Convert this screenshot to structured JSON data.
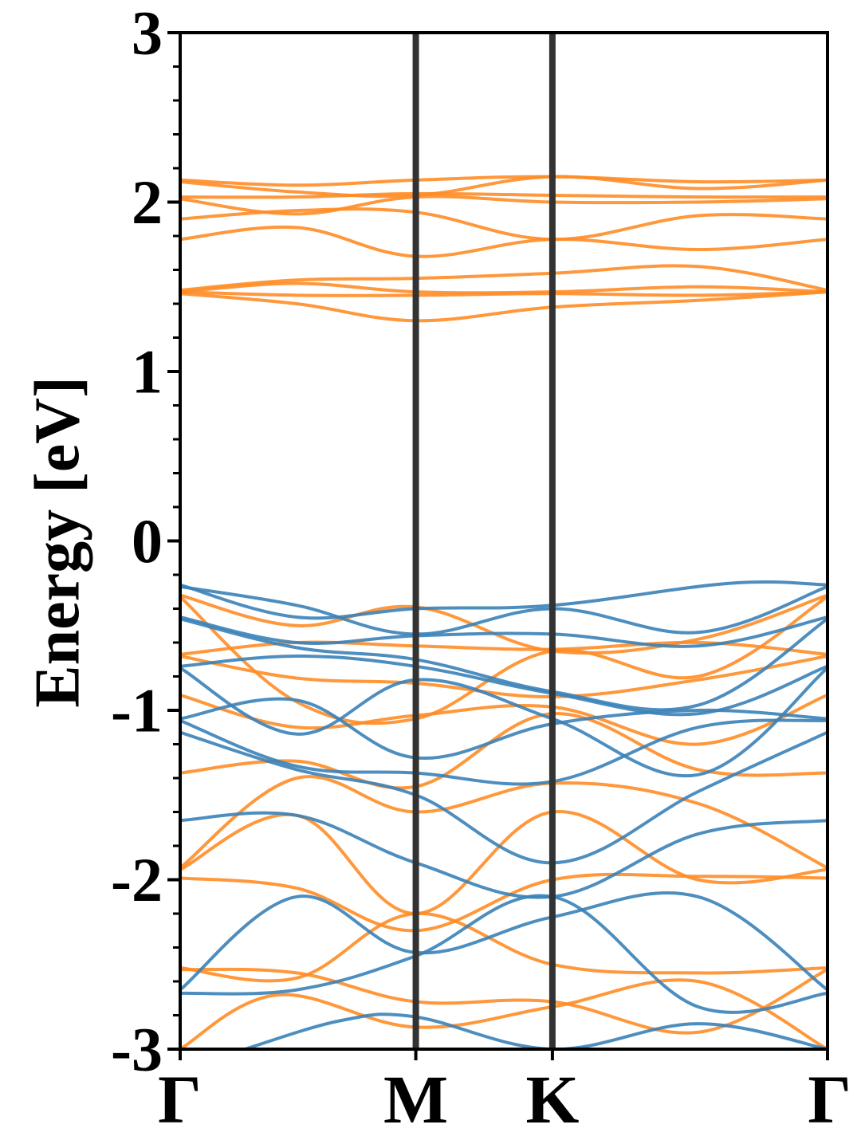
{
  "chart_data": {
    "type": "line",
    "title": "",
    "xlabel": "",
    "ylabel": "Energy [eV]",
    "ylim": [
      -3,
      3
    ],
    "yticks": [
      -3,
      -2,
      -1,
      0,
      1,
      2,
      3
    ],
    "ytick_labels": [
      "-3",
      "-2",
      "-1",
      "0",
      "1",
      "2",
      "3"
    ],
    "xlim": [
      0,
      1
    ],
    "kpoints": [
      {
        "label": "Γ",
        "x": 0.0
      },
      {
        "label": "M",
        "x": 0.364
      },
      {
        "label": "K",
        "x": 0.575
      },
      {
        "label": "Γ",
        "x": 1.0
      }
    ],
    "grid": false,
    "colors": {
      "series_a": "#3b82b8",
      "series_b": "#ff8c26",
      "kline": "#333333"
    },
    "series": [
      {
        "color": "series_b",
        "bands": [
          [
            [
              0,
              2.13
            ],
            [
              0.18,
              2.1
            ],
            [
              0.364,
              2.13
            ],
            [
              0.575,
              2.15
            ],
            [
              0.8,
              2.12
            ],
            [
              1,
              2.13
            ]
          ],
          [
            [
              0,
              2.12
            ],
            [
              0.18,
              2.06
            ],
            [
              0.364,
              2.04
            ],
            [
              0.575,
              2.15
            ],
            [
              0.8,
              2.08
            ],
            [
              1,
              2.13
            ]
          ],
          [
            [
              0,
              2.03
            ],
            [
              0.18,
              2.03
            ],
            [
              0.364,
              2.05
            ],
            [
              0.575,
              2.04
            ],
            [
              0.8,
              2.03
            ],
            [
              1,
              2.03
            ]
          ],
          [
            [
              0,
              2.02
            ],
            [
              0.18,
              1.93
            ],
            [
              0.364,
              2.03
            ],
            [
              0.575,
              2.0
            ],
            [
              0.8,
              2.0
            ],
            [
              1,
              2.02
            ]
          ],
          [
            [
              0,
              1.9
            ],
            [
              0.18,
              1.95
            ],
            [
              0.364,
              1.94
            ],
            [
              0.575,
              1.78
            ],
            [
              0.8,
              1.92
            ],
            [
              1,
              1.9
            ]
          ],
          [
            [
              0,
              1.78
            ],
            [
              0.18,
              1.85
            ],
            [
              0.364,
              1.68
            ],
            [
              0.575,
              1.78
            ],
            [
              0.8,
              1.72
            ],
            [
              1,
              1.78
            ]
          ],
          [
            [
              0,
              1.48
            ],
            [
              0.18,
              1.54
            ],
            [
              0.364,
              1.55
            ],
            [
              0.575,
              1.58
            ],
            [
              0.8,
              1.62
            ],
            [
              1,
              1.48
            ]
          ],
          [
            [
              0,
              1.47
            ],
            [
              0.18,
              1.52
            ],
            [
              0.364,
              1.47
            ],
            [
              0.575,
              1.47
            ],
            [
              0.8,
              1.5
            ],
            [
              1,
              1.47
            ]
          ],
          [
            [
              0,
              1.47
            ],
            [
              0.18,
              1.45
            ],
            [
              0.364,
              1.45
            ],
            [
              0.575,
              1.46
            ],
            [
              0.8,
              1.45
            ],
            [
              1,
              1.47
            ]
          ],
          [
            [
              0,
              1.46
            ],
            [
              0.18,
              1.4
            ],
            [
              0.364,
              1.3
            ],
            [
              0.575,
              1.38
            ],
            [
              0.8,
              1.42
            ],
            [
              1,
              1.47
            ]
          ],
          [
            [
              0,
              -0.32
            ],
            [
              0.18,
              -0.5
            ],
            [
              0.364,
              -0.39
            ],
            [
              0.575,
              -0.65
            ],
            [
              0.8,
              -0.58
            ],
            [
              1,
              -0.32
            ]
          ],
          [
            [
              0,
              -0.33
            ],
            [
              0.18,
              -0.95
            ],
            [
              0.364,
              -1.05
            ],
            [
              0.575,
              -0.65
            ],
            [
              0.8,
              -0.8
            ],
            [
              1,
              -0.33
            ]
          ],
          [
            [
              0,
              -0.67
            ],
            [
              0.18,
              -0.6
            ],
            [
              0.364,
              -0.62
            ],
            [
              0.575,
              -0.64
            ],
            [
              0.8,
              -0.6
            ],
            [
              1,
              -0.67
            ]
          ],
          [
            [
              0,
              -0.68
            ],
            [
              0.18,
              -0.81
            ],
            [
              0.364,
              -0.84
            ],
            [
              0.575,
              -0.92
            ],
            [
              0.8,
              -0.82
            ],
            [
              1,
              -0.68
            ]
          ],
          [
            [
              0,
              -0.91
            ],
            [
              0.18,
              -1.1
            ],
            [
              0.364,
              -1.03
            ],
            [
              0.575,
              -0.98
            ],
            [
              0.8,
              -1.2
            ],
            [
              1,
              -0.91
            ]
          ],
          [
            [
              0,
              -1.37
            ],
            [
              0.18,
              -1.3
            ],
            [
              0.364,
              -1.45
            ],
            [
              0.575,
              -1.02
            ],
            [
              0.8,
              -1.35
            ],
            [
              1,
              -1.37
            ]
          ],
          [
            [
              0,
              -1.93
            ],
            [
              0.18,
              -1.4
            ],
            [
              0.364,
              -1.6
            ],
            [
              0.575,
              -1.43
            ],
            [
              0.8,
              -1.55
            ],
            [
              1,
              -1.93
            ]
          ],
          [
            [
              0,
              -1.94
            ],
            [
              0.18,
              -1.62
            ],
            [
              0.364,
              -2.2
            ],
            [
              0.575,
              -1.6
            ],
            [
              0.8,
              -2.0
            ],
            [
              1,
              -1.94
            ]
          ],
          [
            [
              0,
              -1.99
            ],
            [
              0.18,
              -2.05
            ],
            [
              0.364,
              -2.3
            ],
            [
              0.575,
              -2.0
            ],
            [
              0.8,
              -1.98
            ],
            [
              1,
              -1.99
            ]
          ],
          [
            [
              0,
              -2.52
            ],
            [
              0.18,
              -2.58
            ],
            [
              0.364,
              -2.2
            ],
            [
              0.575,
              -2.5
            ],
            [
              0.8,
              -2.55
            ],
            [
              1,
              -2.52
            ]
          ],
          [
            [
              0,
              -2.53
            ],
            [
              0.18,
              -2.55
            ],
            [
              0.364,
              -2.72
            ],
            [
              0.575,
              -2.72
            ],
            [
              0.8,
              -2.9
            ],
            [
              1,
              -2.53
            ]
          ],
          [
            [
              0,
              -3.0
            ],
            [
              0.15,
              -2.68
            ],
            [
              0.364,
              -2.87
            ],
            [
              0.575,
              -2.75
            ],
            [
              0.8,
              -2.6
            ],
            [
              1,
              -3.0
            ]
          ]
        ]
      },
      {
        "color": "series_a",
        "bands": [
          [
            [
              0,
              -0.26
            ],
            [
              0.18,
              -0.45
            ],
            [
              0.364,
              -0.4
            ],
            [
              0.575,
              -0.38
            ],
            [
              0.85,
              -0.25
            ],
            [
              1,
              -0.26
            ]
          ],
          [
            [
              0,
              -0.27
            ],
            [
              0.18,
              -0.38
            ],
            [
              0.364,
              -0.55
            ],
            [
              0.575,
              -0.4
            ],
            [
              0.8,
              -0.54
            ],
            [
              1,
              -0.27
            ]
          ],
          [
            [
              0,
              -0.45
            ],
            [
              0.18,
              -0.6
            ],
            [
              0.364,
              -0.56
            ],
            [
              0.575,
              -0.55
            ],
            [
              0.8,
              -0.62
            ],
            [
              1,
              -0.45
            ]
          ],
          [
            [
              0,
              -0.46
            ],
            [
              0.18,
              -0.63
            ],
            [
              0.364,
              -0.7
            ],
            [
              0.575,
              -0.89
            ],
            [
              0.8,
              -0.97
            ],
            [
              1,
              -0.46
            ]
          ],
          [
            [
              0,
              -0.74
            ],
            [
              0.18,
              -0.68
            ],
            [
              0.364,
              -0.74
            ],
            [
              0.575,
              -0.9
            ],
            [
              0.8,
              -1.02
            ],
            [
              1,
              -0.74
            ]
          ],
          [
            [
              0,
              -0.75
            ],
            [
              0.18,
              -1.14
            ],
            [
              0.364,
              -0.82
            ],
            [
              0.575,
              -1.05
            ],
            [
              0.8,
              -1.38
            ],
            [
              1,
              -0.75
            ]
          ],
          [
            [
              0,
              -1.05
            ],
            [
              0.18,
              -0.94
            ],
            [
              0.364,
              -1.28
            ],
            [
              0.575,
              -1.08
            ],
            [
              0.8,
              -1.0
            ],
            [
              1,
              -1.05
            ]
          ],
          [
            [
              0,
              -1.06
            ],
            [
              0.18,
              -1.33
            ],
            [
              0.364,
              -1.37
            ],
            [
              0.575,
              -1.42
            ],
            [
              0.8,
              -1.1
            ],
            [
              1,
              -1.06
            ]
          ],
          [
            [
              0,
              -1.13
            ],
            [
              0.18,
              -1.35
            ],
            [
              0.364,
              -1.5
            ],
            [
              0.575,
              -1.9
            ],
            [
              0.8,
              -1.48
            ],
            [
              1,
              -1.13
            ]
          ],
          [
            [
              0,
              -1.65
            ],
            [
              0.18,
              -1.62
            ],
            [
              0.364,
              -1.9
            ],
            [
              0.575,
              -2.1
            ],
            [
              0.8,
              -1.73
            ],
            [
              1,
              -1.65
            ]
          ],
          [
            [
              0,
              -2.65
            ],
            [
              0.18,
              -2.1
            ],
            [
              0.364,
              -2.43
            ],
            [
              0.575,
              -2.22
            ],
            [
              0.8,
              -2.1
            ],
            [
              1,
              -2.65
            ]
          ],
          [
            [
              0,
              -2.67
            ],
            [
              0.18,
              -2.65
            ],
            [
              0.364,
              -2.45
            ],
            [
              0.575,
              -2.1
            ],
            [
              0.8,
              -2.75
            ],
            [
              1,
              -2.67
            ]
          ],
          [
            [
              0.1,
              -3.0
            ],
            [
              0.25,
              -2.83
            ],
            [
              0.364,
              -2.81
            ],
            [
              0.575,
              -3.0
            ],
            [
              0.8,
              -2.85
            ],
            [
              1,
              -3.0
            ]
          ]
        ]
      }
    ]
  }
}
